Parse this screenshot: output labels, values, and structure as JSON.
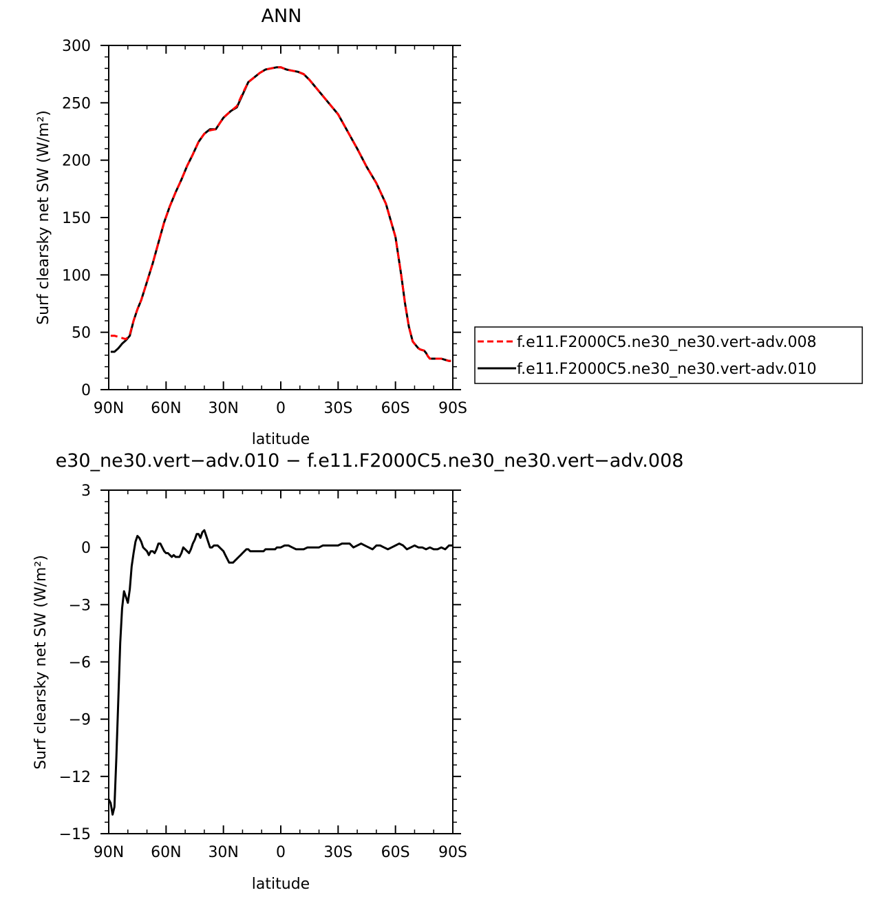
{
  "figure": {
    "legend": {
      "entries": [
        {
          "label": "f.e11.F2000C5.ne30_ne30.vert-adv.008",
          "color": "#ff0000",
          "dash": "dashed"
        },
        {
          "label": "f.e11.F2000C5.ne30_ne30.vert-adv.010",
          "color": "#000000",
          "dash": "solid"
        }
      ],
      "placement": "right of top panel"
    }
  },
  "chart_data": [
    {
      "type": "line",
      "title": "ANN",
      "xlabel": "latitude",
      "ylabel": "Surf clearsky net SW (W/m²)",
      "xlim": [
        90,
        -90
      ],
      "ylim": [
        0,
        300
      ],
      "xticks": [
        90,
        60,
        30,
        0,
        -30,
        -60,
        -90
      ],
      "xtick_labels": [
        "90N",
        "60N",
        "30N",
        "0",
        "30S",
        "60S",
        "90S"
      ],
      "yticks": [
        0,
        50,
        100,
        150,
        200,
        250,
        300
      ],
      "ytick_labels": [
        "0",
        "50",
        "100",
        "150",
        "200",
        "250",
        "300"
      ],
      "grid": false,
      "series": [
        {
          "name": "f.e11.F2000C5.ne30_ne30.vert-adv.008",
          "color": "#ff0000",
          "dash": "dashed",
          "x": [
            89,
            87,
            85,
            83,
            81,
            79,
            77,
            75,
            73,
            70,
            67,
            64,
            61,
            58,
            55,
            52,
            49,
            46,
            43,
            40,
            37,
            34,
            32,
            30,
            28,
            26,
            23,
            20,
            17,
            14,
            11,
            8,
            5,
            2,
            0,
            -3,
            -6,
            -9,
            -12,
            -15,
            -20,
            -25,
            -30,
            -35,
            -40,
            -45,
            -50,
            -55,
            -60,
            -63,
            -65,
            -67,
            -69,
            -71,
            -72,
            -73,
            -75,
            -76,
            -77,
            -78,
            -79,
            -80,
            -82,
            -84,
            -86,
            -88,
            -89
          ],
          "values": [
            47,
            47,
            46,
            45,
            44,
            48,
            60,
            70,
            78,
            94,
            110,
            128,
            146,
            160,
            172,
            183,
            195,
            205,
            216,
            223,
            226,
            227,
            232,
            237,
            240,
            243,
            247,
            258,
            268,
            272,
            276,
            279,
            280,
            281,
            281,
            279,
            278,
            277,
            275,
            270,
            260,
            250,
            240,
            225,
            210,
            194,
            180,
            162,
            133,
            100,
            75,
            55,
            42,
            38,
            36,
            35,
            34,
            32,
            29,
            27,
            27,
            27,
            27,
            27,
            26,
            25,
            25
          ]
        },
        {
          "name": "f.e11.F2000C5.ne30_ne30.vert-adv.010",
          "color": "#000000",
          "dash": "solid",
          "x": [
            89,
            87,
            85,
            83,
            81,
            79,
            77,
            75,
            73,
            70,
            67,
            64,
            61,
            58,
            55,
            52,
            49,
            46,
            43,
            40,
            37,
            34,
            32,
            30,
            28,
            26,
            23,
            20,
            17,
            14,
            11,
            8,
            5,
            2,
            0,
            -3,
            -6,
            -9,
            -12,
            -15,
            -20,
            -25,
            -30,
            -35,
            -40,
            -45,
            -50,
            -55,
            -60,
            -63,
            -65,
            -67,
            -69,
            -71,
            -72,
            -73,
            -75,
            -76,
            -77,
            -78,
            -79,
            -80,
            -82,
            -84,
            -86,
            -88,
            -89
          ],
          "values": [
            33,
            33,
            36,
            40,
            43,
            47,
            60,
            70,
            78,
            94,
            110,
            128,
            146,
            160,
            172,
            183,
            195,
            205,
            216,
            223,
            227,
            227,
            232,
            237,
            240,
            243,
            246,
            257,
            268,
            272,
            276,
            279,
            280,
            281,
            281,
            279,
            278,
            277,
            275,
            270,
            260,
            250,
            240,
            225,
            210,
            194,
            180,
            162,
            133,
            100,
            75,
            55,
            42,
            38,
            36,
            35,
            34,
            32,
            29,
            27,
            27,
            27,
            27,
            27,
            26,
            25,
            25
          ]
        }
      ]
    },
    {
      "type": "line",
      "title": "e30_ne30.vert−adv.010 − f.e11.F2000C5.ne30_ne30.vert−adv.008",
      "xlabel": "latitude",
      "ylabel": "Surf clearsky net SW (W/m²)",
      "xlim": [
        90,
        -90
      ],
      "ylim": [
        -15,
        3
      ],
      "xticks": [
        90,
        60,
        30,
        0,
        -30,
        -60,
        -90
      ],
      "xtick_labels": [
        "90N",
        "60N",
        "30N",
        "0",
        "30S",
        "60S",
        "90S"
      ],
      "yticks": [
        -15,
        -12,
        -9,
        -6,
        -3,
        0,
        3
      ],
      "ytick_labels": [
        "−15",
        "−12",
        "−9",
        "−6",
        "−3",
        "0",
        "3"
      ],
      "grid": false,
      "series": [
        {
          "color": "#000000",
          "dash": "solid",
          "x": [
            90,
            89,
            88,
            87,
            86,
            85,
            84,
            83,
            82,
            81,
            80,
            79,
            78,
            77,
            76,
            75,
            74,
            73,
            72,
            71,
            70,
            69,
            68,
            67,
            66,
            65,
            64,
            63,
            62,
            61,
            60,
            59,
            58,
            57,
            56,
            55,
            54,
            53,
            52,
            51,
            50,
            49,
            48,
            47,
            46,
            45,
            44,
            43,
            42,
            41,
            40,
            39,
            38,
            37,
            36,
            35,
            34,
            33,
            32,
            31,
            30,
            29,
            28,
            27,
            26,
            25,
            24,
            23,
            22,
            21,
            20,
            19,
            18,
            17,
            16,
            15,
            14,
            13,
            12,
            11,
            10,
            9,
            8,
            7,
            6,
            5,
            4,
            3,
            2,
            1,
            0,
            -2,
            -4,
            -6,
            -8,
            -10,
            -12,
            -14,
            -16,
            -18,
            -20,
            -22,
            -24,
            -26,
            -28,
            -30,
            -32,
            -34,
            -36,
            -38,
            -40,
            -42,
            -44,
            -46,
            -48,
            -50,
            -52,
            -54,
            -56,
            -58,
            -60,
            -62,
            -64,
            -66,
            -68,
            -70,
            -72,
            -74,
            -76,
            -78,
            -80,
            -82,
            -84,
            -86,
            -88,
            -90
          ],
          "values": [
            -13.2,
            -13.4,
            -14.0,
            -13.6,
            -11.0,
            -8.0,
            -5.0,
            -3.2,
            -2.3,
            -2.6,
            -2.9,
            -2.2,
            -1.0,
            -0.3,
            0.3,
            0.6,
            0.5,
            0.3,
            0.0,
            -0.1,
            -0.2,
            -0.4,
            -0.2,
            -0.2,
            -0.3,
            -0.1,
            0.2,
            0.2,
            0.0,
            -0.2,
            -0.3,
            -0.3,
            -0.4,
            -0.5,
            -0.4,
            -0.5,
            -0.5,
            -0.5,
            -0.3,
            0.0,
            -0.1,
            -0.2,
            -0.3,
            -0.1,
            0.2,
            0.4,
            0.7,
            0.7,
            0.5,
            0.8,
            0.9,
            0.6,
            0.3,
            0.0,
            0.0,
            0.1,
            0.1,
            0.1,
            0.0,
            -0.1,
            -0.2,
            -0.4,
            -0.6,
            -0.8,
            -0.8,
            -0.8,
            -0.7,
            -0.6,
            -0.5,
            -0.4,
            -0.3,
            -0.2,
            -0.1,
            -0.1,
            -0.2,
            -0.2,
            -0.2,
            -0.2,
            -0.2,
            -0.2,
            -0.2,
            -0.2,
            -0.1,
            -0.1,
            -0.1,
            -0.1,
            -0.1,
            -0.1,
            0.0,
            0.0,
            0.0,
            0.1,
            0.1,
            0.0,
            -0.1,
            -0.1,
            -0.1,
            0.0,
            0.0,
            0.0,
            0.0,
            0.1,
            0.1,
            0.1,
            0.1,
            0.1,
            0.2,
            0.2,
            0.2,
            0.0,
            0.1,
            0.2,
            0.1,
            0.0,
            -0.1,
            0.1,
            0.1,
            0.0,
            -0.1,
            0.0,
            0.1,
            0.2,
            0.1,
            -0.1,
            0.0,
            0.1,
            0.0,
            0.0,
            -0.1,
            0.0,
            -0.1,
            -0.1,
            0.0,
            -0.1,
            0.1,
            0.1
          ]
        }
      ]
    }
  ]
}
